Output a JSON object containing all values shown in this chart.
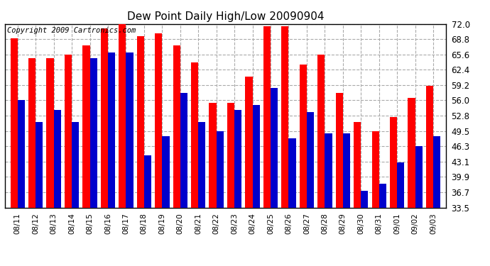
{
  "title": "Dew Point Daily High/Low 20090904",
  "copyright": "Copyright 2009 Cartronics.com",
  "dates": [
    "08/11",
    "08/12",
    "08/13",
    "08/14",
    "08/15",
    "08/16",
    "08/17",
    "08/18",
    "08/19",
    "08/20",
    "08/21",
    "08/22",
    "08/23",
    "08/24",
    "08/25",
    "08/26",
    "08/27",
    "08/28",
    "08/29",
    "08/30",
    "08/31",
    "09/01",
    "09/02",
    "09/03"
  ],
  "highs": [
    69.0,
    64.8,
    64.8,
    65.6,
    67.5,
    71.0,
    72.0,
    69.5,
    70.0,
    67.5,
    64.0,
    55.5,
    55.5,
    61.0,
    71.5,
    71.5,
    63.5,
    65.6,
    57.5,
    51.5,
    49.5,
    52.5,
    56.5,
    59.0
  ],
  "lows": [
    56.0,
    51.5,
    54.0,
    51.5,
    64.8,
    66.0,
    66.0,
    44.5,
    48.5,
    57.5,
    51.5,
    49.5,
    54.0,
    55.0,
    58.5,
    48.0,
    53.5,
    49.0,
    49.0,
    37.0,
    38.5,
    43.0,
    46.3,
    48.5
  ],
  "ylim": [
    33.5,
    72.0
  ],
  "yticks": [
    33.5,
    36.7,
    39.9,
    43.1,
    46.3,
    49.5,
    52.8,
    56.0,
    59.2,
    62.4,
    65.6,
    68.8,
    72.0
  ],
  "high_color": "#FF0000",
  "low_color": "#0000CC",
  "bg_color": "#FFFFFF",
  "grid_color": "#AAAAAA",
  "title_fontsize": 11,
  "copyright_fontsize": 7.5
}
